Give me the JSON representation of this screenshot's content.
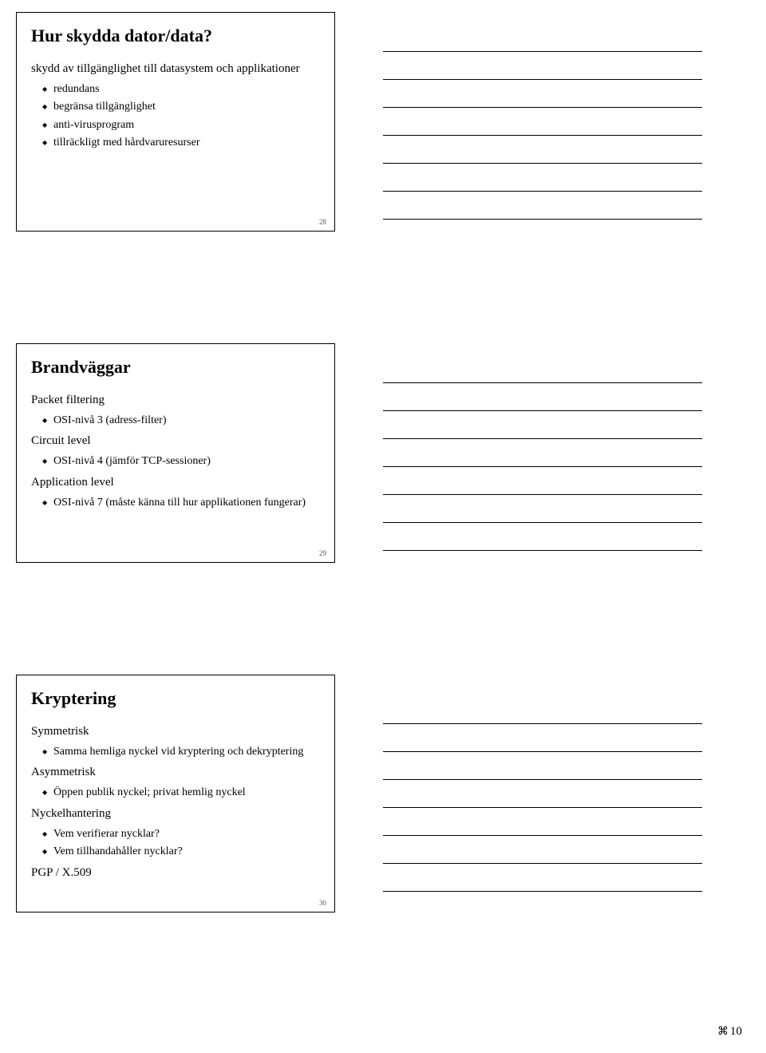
{
  "slide1": {
    "title": "Hur skydda dator/data?",
    "intro": "skydd av tillgänglighet till datasystem och applikationer",
    "items": [
      "redundans",
      "begränsa tillgänglighet",
      "anti-virusprogram",
      "tillräckligt med hårdvaruresurser"
    ],
    "page": "28"
  },
  "slide2": {
    "title": "Brandväggar",
    "groups": [
      {
        "head": "Packet filtering",
        "item": "OSI-nivå 3 (adress-filter)"
      },
      {
        "head": "Circuit level",
        "item": "OSI-nivå 4 (jämför TCP-sessioner)"
      },
      {
        "head": "Application level",
        "item": "OSI-nivå 7 (måste känna till hur applikationen fungerar)"
      }
    ],
    "page": "29"
  },
  "slide3": {
    "title": "Kryptering",
    "groups": [
      {
        "head": "Symmetrisk",
        "items": [
          "Samma hemliga nyckel vid kryptering och dekryptering"
        ]
      },
      {
        "head": "Asymmetrisk",
        "items": [
          "Öppen publik nyckel; privat hemlig nyckel"
        ]
      },
      {
        "head": "Nyckelhantering",
        "items": [
          "Vem verifierar nycklar?",
          "Vem tillhandahåller nycklar?"
        ]
      },
      {
        "head": "PGP / X.509",
        "items": []
      }
    ],
    "page": "30"
  },
  "footer": {
    "icon": "⌘",
    "page": "10"
  },
  "notes_count": 7
}
